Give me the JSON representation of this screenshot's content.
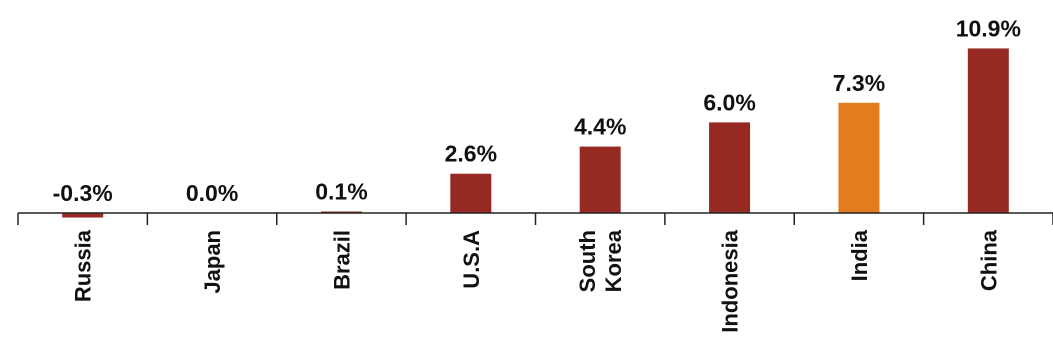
{
  "chart_data": {
    "type": "bar",
    "categories": [
      "Russia",
      "Japan",
      "Brazil",
      "U.S.A",
      "South Korea",
      "Indonesia",
      "India",
      "China"
    ],
    "category_lines": [
      [
        "Russia"
      ],
      [
        "Japan"
      ],
      [
        "Brazil"
      ],
      [
        "U.S.A"
      ],
      [
        "South",
        "Korea"
      ],
      [
        "Indonesia"
      ],
      [
        "India"
      ],
      [
        "China"
      ]
    ],
    "values": [
      -0.3,
      0.0,
      0.1,
      2.6,
      4.4,
      6.0,
      7.3,
      10.9
    ],
    "value_labels": [
      "-0.3%",
      "0.0%",
      "0.1%",
      "2.6%",
      "4.4%",
      "6.0%",
      "7.3%",
      "10.9%"
    ],
    "bar_colors": [
      "#962a22",
      "#962a22",
      "#962a22",
      "#962a22",
      "#962a22",
      "#962a22",
      "#e37b1f",
      "#962a22"
    ],
    "title": "",
    "xlabel": "",
    "ylabel": "",
    "grid": false,
    "legend": "none"
  }
}
